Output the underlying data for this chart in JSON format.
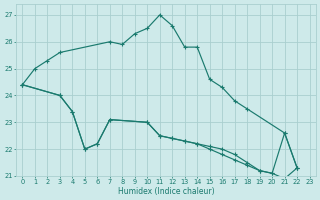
{
  "xlabel": "Humidex (Indice chaleur)",
  "xlim": [
    -0.5,
    23.5
  ],
  "ylim": [
    21,
    27.4
  ],
  "yticks": [
    21,
    22,
    23,
    24,
    25,
    26,
    27
  ],
  "xticks": [
    0,
    1,
    2,
    3,
    4,
    5,
    6,
    7,
    8,
    9,
    10,
    11,
    12,
    13,
    14,
    15,
    16,
    17,
    18,
    19,
    20,
    21,
    22,
    23
  ],
  "bg_color": "#ceeaea",
  "line_color": "#1a7a6e",
  "grid_color": "#aacfcf",
  "series": [
    {
      "x": [
        0,
        1,
        2,
        3,
        7,
        8,
        9,
        10,
        11,
        12,
        13,
        14,
        15,
        16,
        17,
        18,
        21,
        22
      ],
      "y": [
        24.4,
        25.0,
        25.3,
        25.6,
        26.0,
        25.9,
        26.3,
        26.5,
        27.0,
        26.6,
        25.8,
        25.8,
        24.6,
        24.3,
        23.8,
        23.5,
        22.6,
        21.3
      ]
    },
    {
      "x": [
        0,
        3,
        4,
        5,
        6,
        7,
        10,
        11,
        12,
        13,
        14,
        15,
        16,
        17,
        18,
        19,
        20,
        21,
        22
      ],
      "y": [
        24.4,
        24.0,
        23.4,
        22.0,
        22.2,
        23.1,
        23.0,
        22.5,
        22.4,
        22.3,
        22.2,
        22.1,
        22.0,
        21.8,
        21.5,
        21.2,
        21.1,
        20.9,
        21.3
      ]
    },
    {
      "x": [
        0,
        3,
        4,
        5,
        6,
        7,
        10,
        11,
        12,
        13,
        14,
        15,
        16,
        17,
        18,
        19,
        20,
        21,
        22
      ],
      "y": [
        24.4,
        24.0,
        23.4,
        22.0,
        22.2,
        23.1,
        23.0,
        22.5,
        22.4,
        22.3,
        22.2,
        22.0,
        21.8,
        21.6,
        21.4,
        21.2,
        21.1,
        22.6,
        21.3
      ]
    }
  ]
}
